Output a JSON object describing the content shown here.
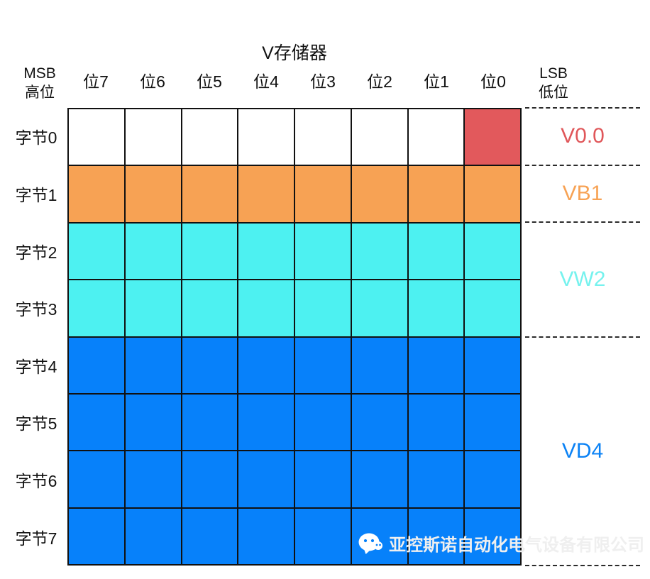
{
  "title": "V存储器",
  "msb": {
    "line1": "MSB",
    "line2": "高位"
  },
  "lsb": {
    "line1": "LSB",
    "line2": "低位"
  },
  "bit_headers": [
    "位7",
    "位6",
    "位5",
    "位4",
    "位3",
    "位2",
    "位1",
    "位0"
  ],
  "byte_labels": [
    "字节0",
    "字节1",
    "字节2",
    "字节3",
    "字节4",
    "字节5",
    "字节6",
    "字节7"
  ],
  "colors": {
    "white": "#ffffff",
    "red": "#e2595c",
    "orange": "#f7a254",
    "cyan": "#4df1f1",
    "blue": "#0781fa",
    "grid_line": "#111111"
  },
  "grid_rows": [
    {
      "byte": "字节0",
      "cells": [
        "white",
        "white",
        "white",
        "white",
        "white",
        "white",
        "white",
        "red"
      ]
    },
    {
      "byte": "字节1",
      "cells": [
        "orange",
        "orange",
        "orange",
        "orange",
        "orange",
        "orange",
        "orange",
        "orange"
      ]
    },
    {
      "byte": "字节2",
      "cells": [
        "cyan",
        "cyan",
        "cyan",
        "cyan",
        "cyan",
        "cyan",
        "cyan",
        "cyan"
      ]
    },
    {
      "byte": "字节3",
      "cells": [
        "cyan",
        "cyan",
        "cyan",
        "cyan",
        "cyan",
        "cyan",
        "cyan",
        "cyan"
      ]
    },
    {
      "byte": "字节4",
      "cells": [
        "blue",
        "blue",
        "blue",
        "blue",
        "blue",
        "blue",
        "blue",
        "blue"
      ]
    },
    {
      "byte": "字节5",
      "cells": [
        "blue",
        "blue",
        "blue",
        "blue",
        "blue",
        "blue",
        "blue",
        "blue"
      ]
    },
    {
      "byte": "字节6",
      "cells": [
        "blue",
        "blue",
        "blue",
        "blue",
        "blue",
        "blue",
        "blue",
        "blue"
      ]
    },
    {
      "byte": "字节7",
      "cells": [
        "blue",
        "blue",
        "blue",
        "blue",
        "blue",
        "blue",
        "blue",
        "blue"
      ]
    }
  ],
  "regions": [
    {
      "label": "V0.0",
      "color": "#e0575a",
      "row_start": 0,
      "row_end": 0
    },
    {
      "label": "VB1",
      "color": "#f7a254",
      "row_start": 1,
      "row_end": 1
    },
    {
      "label": "VW2",
      "color": "#76f2ee",
      "row_start": 2,
      "row_end": 3
    },
    {
      "label": "VD4",
      "color": "#0b82f5",
      "row_start": 4,
      "row_end": 7
    }
  ],
  "watermark": {
    "icon": "wechat-icon",
    "text": "亚控斯诺自动化电气设备有限公司"
  }
}
